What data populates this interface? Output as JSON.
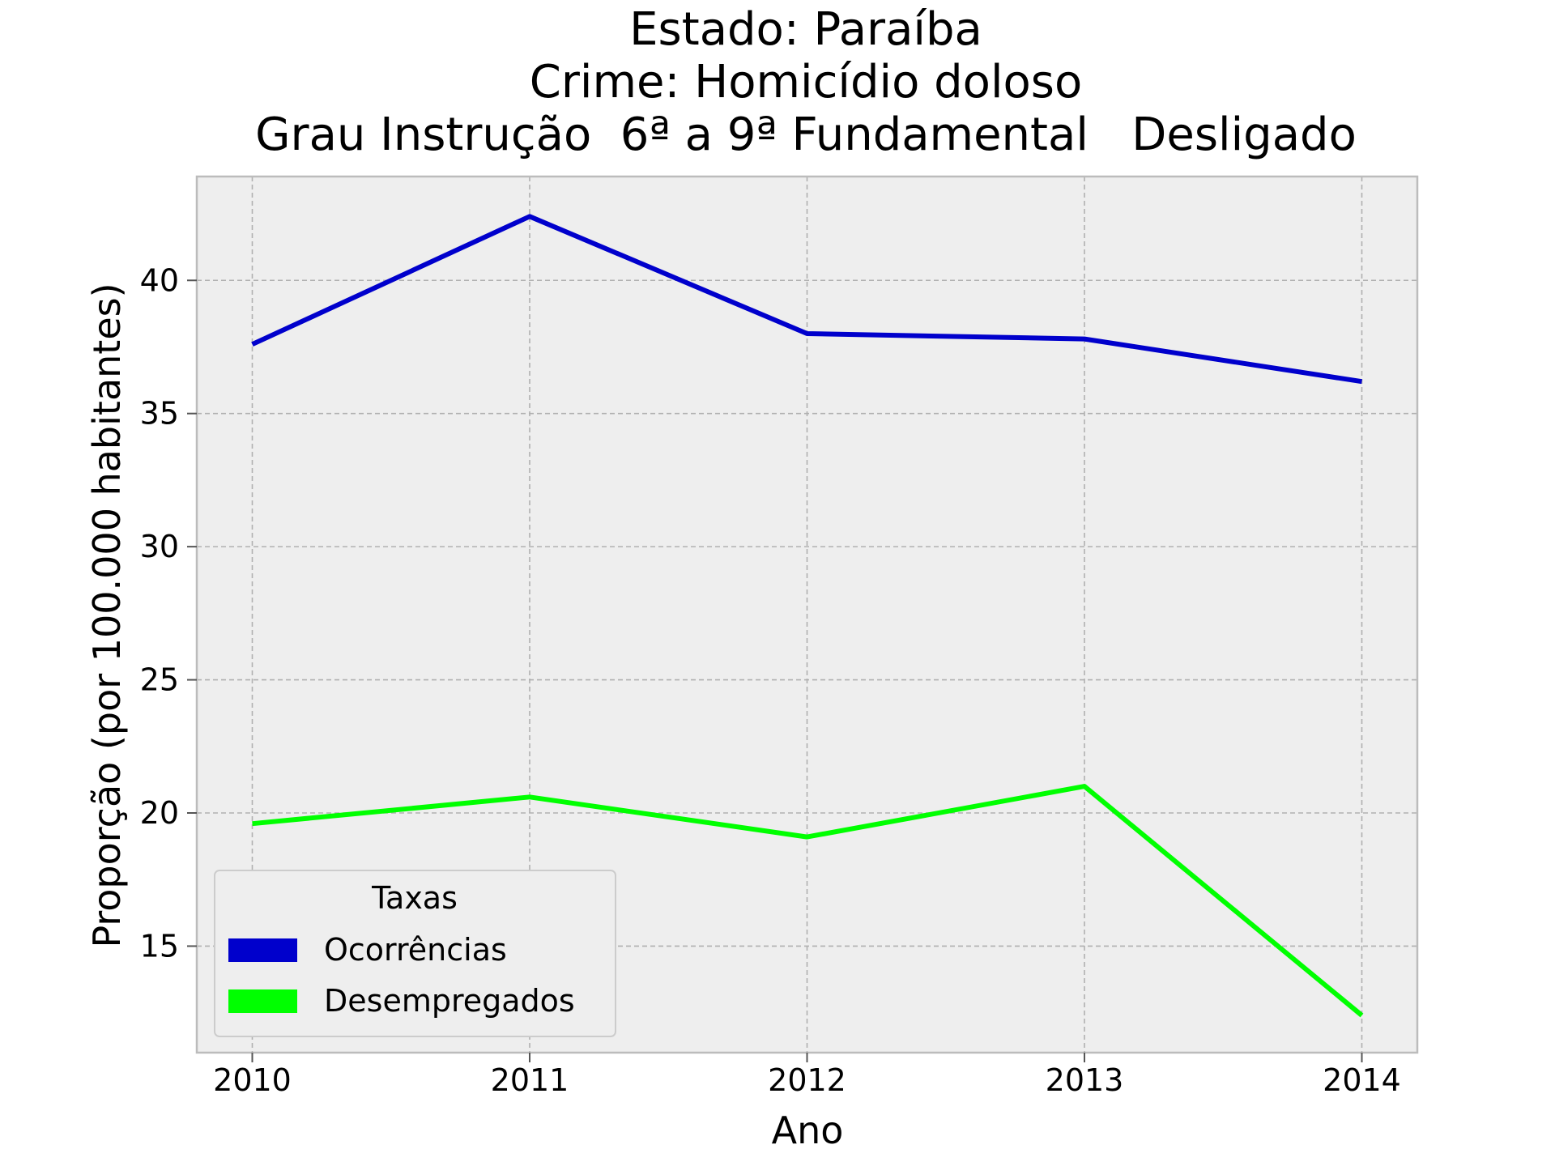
{
  "title_lines": [
    "Estado: Paraíba",
    "Crime: Homicídio doloso",
    "Grau Instrução  6ª a 9ª Fundamental   Desligado"
  ],
  "chart_data": {
    "type": "line",
    "x": [
      2010,
      2011,
      2012,
      2013,
      2014
    ],
    "x_tick_labels": [
      "2010",
      "2011",
      "2012",
      "2013",
      "2014"
    ],
    "y_tick_values": [
      15,
      20,
      25,
      30,
      35,
      40
    ],
    "y_tick_labels": [
      "15",
      "20",
      "25",
      "30",
      "35",
      "40"
    ],
    "xlabel": "Ano",
    "ylabel": "Proporção (por 100.000 habitantes)",
    "xlim": [
      2009.8,
      2014.2
    ],
    "ylim": [
      11.0,
      43.9
    ],
    "grid": true,
    "legend": {
      "title": "Taxas",
      "placement": "lower-left"
    },
    "series": [
      {
        "name": "Ocorrências",
        "color": "#0000cc",
        "values": [
          37.6,
          42.4,
          38.0,
          37.8,
          36.2
        ]
      },
      {
        "name": "Desempregados",
        "color": "#00ff00",
        "values": [
          19.6,
          20.6,
          19.1,
          21.0,
          12.4
        ]
      }
    ]
  }
}
